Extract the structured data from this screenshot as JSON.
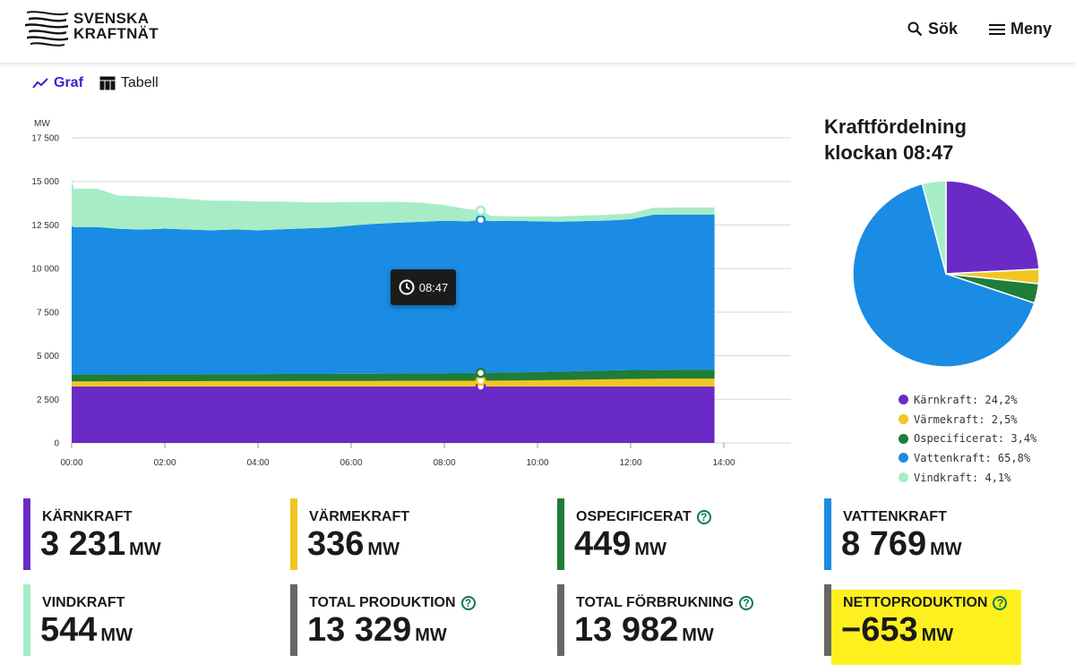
{
  "header": {
    "logo_line1": "SVENSKA",
    "logo_line2": "KRAFTNÄT",
    "search_label": "Sök",
    "menu_label": "Meny"
  },
  "tabs": [
    {
      "label": "Graf",
      "active": true
    },
    {
      "label": "Tabell",
      "active": false
    }
  ],
  "tooltip": {
    "time": "08:47"
  },
  "pie": {
    "title_line1": "Kraftfördelning",
    "title_line2": "klockan 08:47"
  },
  "chart_data": [
    {
      "type": "area",
      "stacked": true,
      "ylabel": "MW",
      "ylim": [
        0,
        17500
      ],
      "yticks": [
        0,
        2500,
        5000,
        7500,
        10000,
        12500,
        15000,
        17500
      ],
      "yticklabels": [
        "0",
        "2 500",
        "5 000",
        "7 500",
        "10 000",
        "12 500",
        "15 000",
        "17 500"
      ],
      "xticks": [
        0,
        2,
        4,
        6,
        8,
        10,
        12,
        14
      ],
      "xticklabels": [
        "00:00",
        "02:00",
        "04:00",
        "06:00",
        "08:00",
        "10:00",
        "12:00",
        "14:00"
      ],
      "x": [
        0,
        0.05,
        0.55,
        1,
        1.5,
        2,
        2.5,
        3,
        3.5,
        4,
        4.5,
        5,
        5.5,
        6,
        6.5,
        7,
        7.5,
        8,
        8.5,
        8.78,
        9,
        9.5,
        10,
        10.5,
        11,
        11.5,
        12,
        12.5,
        13,
        13.5,
        13.8
      ],
      "series": [
        {
          "name": "Kärnkraft",
          "color": "#6a2ac6",
          "values": [
            3230,
            3231,
            3231,
            3230,
            3231,
            3230,
            3231,
            3231,
            3230,
            3231,
            3230,
            3231,
            3231,
            3230,
            3231,
            3231,
            3230,
            3231,
            3231,
            3231,
            3231,
            3230,
            3231,
            3231,
            3230,
            3231,
            3231,
            3230,
            3231,
            3231,
            3231
          ]
        },
        {
          "name": "Värmekraft",
          "color": "#f2c523",
          "values": [
            300,
            300,
            300,
            305,
            305,
            310,
            310,
            315,
            315,
            315,
            320,
            320,
            320,
            325,
            325,
            330,
            330,
            335,
            335,
            336,
            340,
            350,
            360,
            380,
            400,
            420,
            440,
            450,
            460,
            460,
            460
          ]
        },
        {
          "name": "Ospecificerat",
          "color": "#1e7d36",
          "values": [
            400,
            400,
            400,
            400,
            400,
            400,
            400,
            400,
            400,
            400,
            400,
            400,
            400,
            410,
            410,
            420,
            420,
            430,
            440,
            449,
            450,
            460,
            470,
            480,
            490,
            500,
            510,
            510,
            510,
            510,
            510
          ]
        },
        {
          "name": "Vattenkraft",
          "color": "#1a8ce4",
          "values": [
            8500,
            8450,
            8450,
            8350,
            8300,
            8350,
            8300,
            8250,
            8300,
            8250,
            8300,
            8350,
            8400,
            8500,
            8600,
            8650,
            8700,
            8750,
            8700,
            8769,
            8700,
            8700,
            8650,
            8600,
            8600,
            8600,
            8650,
            8900,
            8900,
            8900,
            8900
          ]
        },
        {
          "name": "Vindkraft",
          "color": "#a6edc6",
          "values": [
            2600,
            2200,
            2200,
            1900,
            1900,
            1800,
            1750,
            1700,
            1650,
            1650,
            1600,
            1500,
            1450,
            1350,
            1250,
            1200,
            1100,
            900,
            700,
            544,
            300,
            250,
            280,
            300,
            320,
            330,
            330,
            400,
            400,
            400,
            400
          ]
        }
      ]
    },
    {
      "type": "pie",
      "title": "Kraftfördelning klockan 08:47",
      "slices": [
        {
          "name": "Kärnkraft",
          "value": 24.2,
          "label": "Kärnkraft: 24,2%",
          "color": "#6a2ac6"
        },
        {
          "name": "Värmekraft",
          "value": 2.5,
          "label": "Värmekraft: 2,5%",
          "color": "#f2c523"
        },
        {
          "name": "Ospecificerat",
          "value": 3.4,
          "label": "Ospecificerat: 3,4%",
          "color": "#1e7d36"
        },
        {
          "name": "Vattenkraft",
          "value": 65.8,
          "label": "Vattenkraft: 65,8%",
          "color": "#1a8ce4"
        },
        {
          "name": "Vindkraft",
          "value": 4.1,
          "label": "Vindkraft: 4,1%",
          "color": "#a6edc6"
        }
      ]
    }
  ],
  "cards": [
    {
      "label": "KÄRNKRAFT",
      "value": "3 231",
      "unit": "MW",
      "color": "#6a2ac6",
      "help": false
    },
    {
      "label": "VÄRMEKRAFT",
      "value": "336",
      "unit": "MW",
      "color": "#f2c523",
      "help": false
    },
    {
      "label": "OSPECIFICERAT",
      "value": "449",
      "unit": "MW",
      "color": "#1e7d36",
      "help": true
    },
    {
      "label": "VATTENKRAFT",
      "value": "8 769",
      "unit": "MW",
      "color": "#1a8ce4",
      "help": false
    },
    {
      "label": "VINDKRAFT",
      "value": "544",
      "unit": "MW",
      "color": "#a6edc6",
      "help": false
    },
    {
      "label": "TOTAL PRODUKTION",
      "value": "13 329",
      "unit": "MW",
      "color": "#666666",
      "help": true
    },
    {
      "label": "TOTAL FÖRBRUKNING",
      "value": "13 982",
      "unit": "MW",
      "color": "#666666",
      "help": true
    },
    {
      "label": "NETTOPRODUKTION",
      "value": "−653",
      "unit": "MW",
      "color": "#666666",
      "help": true
    }
  ]
}
